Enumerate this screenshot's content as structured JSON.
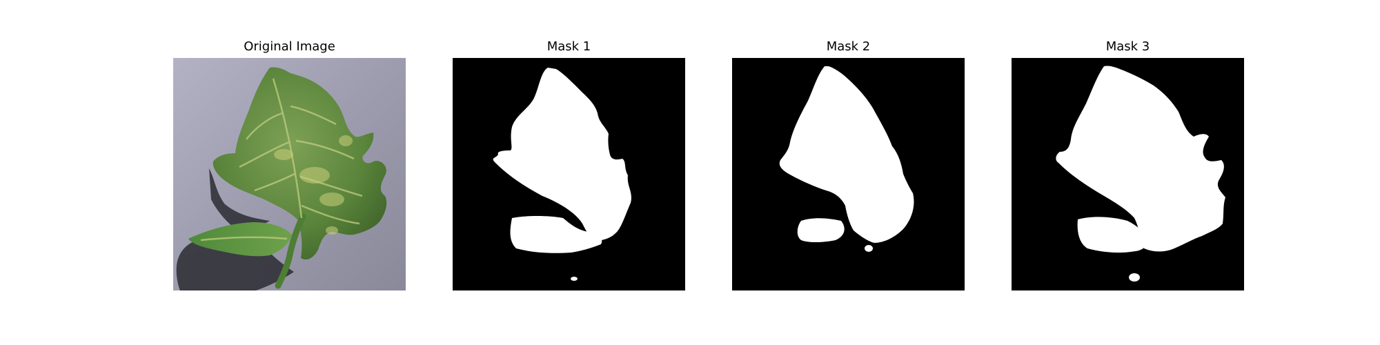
{
  "figure": {
    "panels": [
      {
        "title": "Original Image"
      },
      {
        "title": "Mask 1"
      },
      {
        "title": "Mask 2"
      },
      {
        "title": "Mask 3"
      }
    ]
  },
  "colors": {
    "background": "#ffffff",
    "mask_background": "#000000",
    "mask_foreground": "#ffffff",
    "surface": "#9d9bac",
    "leaf": "#5f8a3f",
    "leaf_dark": "#35562a",
    "shadow": "#2c2c34",
    "vein": "#b9c777"
  }
}
